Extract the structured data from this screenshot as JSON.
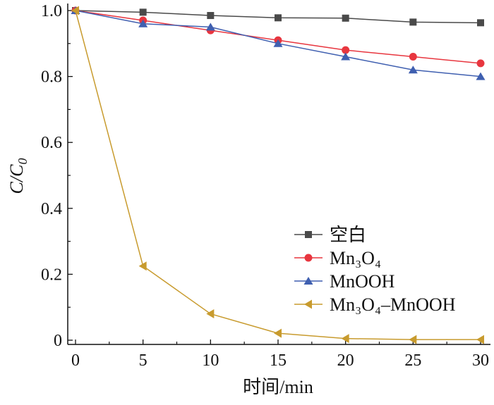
{
  "chart_data": {
    "type": "line",
    "title": "",
    "xlabel": "时间/min",
    "ylabel": "C/C0",
    "ylabel_main": "C/C",
    "ylabel_sub": "0",
    "xlim": [
      0,
      30
    ],
    "ylim": [
      0,
      1.0
    ],
    "x": [
      0,
      5,
      10,
      15,
      20,
      25,
      30
    ],
    "xticks": [
      "0",
      "5",
      "10",
      "15",
      "20",
      "25",
      "30"
    ],
    "yticks": [
      "0",
      "0.2",
      "0.4",
      "0.6",
      "0.8",
      "1.0"
    ],
    "legend_position": "center-right",
    "series": [
      {
        "name": "空白",
        "color": "#4a4a4a",
        "marker": "square",
        "values": [
          1.0,
          0.995,
          0.985,
          0.978,
          0.977,
          0.965,
          0.963
        ]
      },
      {
        "name": "Mn₃O₄",
        "color": "#e8363f",
        "marker": "circle",
        "values": [
          1.0,
          0.97,
          0.94,
          0.91,
          0.88,
          0.86,
          0.84
        ]
      },
      {
        "name": "MnOOH",
        "color": "#3f5fb0",
        "marker": "triangle-up",
        "values": [
          1.0,
          0.96,
          0.95,
          0.9,
          0.86,
          0.82,
          0.8
        ]
      },
      {
        "name": "Mn₃O₄–MnOOH",
        "color": "#c89b2e",
        "marker": "triangle-left",
        "values": [
          1.0,
          0.225,
          0.08,
          0.021,
          0.005,
          0.002,
          0.002
        ]
      }
    ]
  }
}
